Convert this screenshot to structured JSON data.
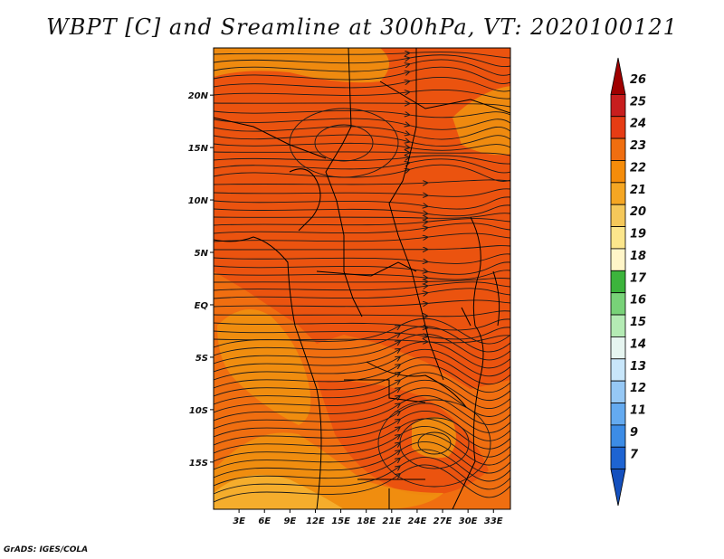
{
  "title": "WBPT [C] and Sreamline at 300hPa, VT: 2020100121",
  "credit": "GrADS: IGES/COLA",
  "map": {
    "lat_ticks": [
      {
        "value": 20,
        "label": "20N"
      },
      {
        "value": 15,
        "label": "15N"
      },
      {
        "value": 10,
        "label": "10N"
      },
      {
        "value": 5,
        "label": "5N"
      },
      {
        "value": 0,
        "label": "EQ"
      },
      {
        "value": -5,
        "label": "5S"
      },
      {
        "value": -10,
        "label": "10S"
      },
      {
        "value": -15,
        "label": "15S"
      }
    ],
    "lon_ticks": [
      {
        "value": 3,
        "label": "3E"
      },
      {
        "value": 6,
        "label": "6E"
      },
      {
        "value": 9,
        "label": "9E"
      },
      {
        "value": 12,
        "label": "12E"
      },
      {
        "value": 15,
        "label": "15E"
      },
      {
        "value": 18,
        "label": "18E"
      },
      {
        "value": 21,
        "label": "21E"
      },
      {
        "value": 24,
        "label": "24E"
      },
      {
        "value": 27,
        "label": "27E"
      },
      {
        "value": 30,
        "label": "30E"
      },
      {
        "value": 33,
        "label": "33E"
      }
    ],
    "lat_range": [
      -19.5,
      24.5
    ],
    "lon_range": [
      0,
      35
    ],
    "fill_colors": {
      "c20_21": "#f5b030",
      "c21_22": "#f09010",
      "c22_23": "#f06e10",
      "c23_24": "#ea5010"
    },
    "streamline_color": "#1a1a1a",
    "border_color": "#000000"
  },
  "colorbar": {
    "labels": [
      "26",
      "25",
      "24",
      "23",
      "22",
      "21",
      "20",
      "19",
      "18",
      "17",
      "16",
      "15",
      "14",
      "13",
      "12",
      "11",
      "9",
      "7"
    ],
    "colors": [
      "#a00000",
      "#c81e1e",
      "#e63c14",
      "#f06e10",
      "#f58c0a",
      "#f5a623",
      "#f5c85a",
      "#fce68c",
      "#fff5c8",
      "#3cb43c",
      "#78d278",
      "#b4ebb4",
      "#e6f5f0",
      "#c8e6fa",
      "#96c8f5",
      "#64aaf0",
      "#3c8ce6",
      "#1e64d2",
      "#1450be"
    ]
  }
}
